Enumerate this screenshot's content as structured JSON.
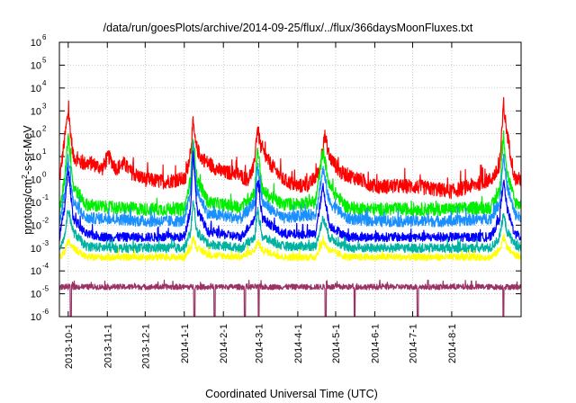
{
  "chart_data": {
    "type": "line",
    "title": "/data/run/goesPlots/archive/2014-09-25/flux/../flux/366daysMoonFluxes.txt",
    "xlabel": "Coordinated Universal Time (UTC)",
    "ylabel": {
      "base": "protons/cm",
      "sup": "2",
      "rest": "-s-sr-MeV"
    },
    "y_scale": "log",
    "ylim": [
      1e-06,
      1000000.0
    ],
    "y_ticks": [
      {
        "value": 1e-06,
        "mantissa": "10",
        "exp": "-6"
      },
      {
        "value": 1e-05,
        "mantissa": "10",
        "exp": "-5"
      },
      {
        "value": 0.0001,
        "mantissa": "10",
        "exp": "-4"
      },
      {
        "value": 0.001,
        "mantissa": "10",
        "exp": "-3"
      },
      {
        "value": 0.01,
        "mantissa": "10",
        "exp": "-2"
      },
      {
        "value": 0.1,
        "mantissa": "10",
        "exp": "-1"
      },
      {
        "value": 1.0,
        "mantissa": "10",
        "exp": "0"
      },
      {
        "value": 10.0,
        "mantissa": "10",
        "exp": "1"
      },
      {
        "value": 100.0,
        "mantissa": "10",
        "exp": "2"
      },
      {
        "value": 1000.0,
        "mantissa": "10",
        "exp": "3"
      },
      {
        "value": 10000.0,
        "mantissa": "10",
        "exp": "4"
      },
      {
        "value": 100000.0,
        "mantissa": "10",
        "exp": "5"
      },
      {
        "value": 1000000.0,
        "mantissa": "10",
        "exp": "6"
      }
    ],
    "xlim": [
      "2013-09-24",
      "2014-09-25"
    ],
    "x_ticks": [
      "2013-10-1",
      "2013-11-1",
      "2013-12-1",
      "2014-1-1",
      "2014-2-1",
      "2014-3-1",
      "2014-4-1",
      "2014-5-1",
      "2014-6-1",
      "2014-7-1",
      "2014-8-1"
    ],
    "grid": true,
    "legend": "none",
    "series": [
      {
        "color": "#ff0000",
        "noise": 0.32,
        "x": [
          "2013-09-24",
          "2013-09-28",
          "2013-10-01",
          "2013-10-05",
          "2013-10-12",
          "2013-10-20",
          "2013-10-28",
          "2013-11-02",
          "2013-11-08",
          "2013-11-14",
          "2013-11-20",
          "2013-12-01",
          "2013-12-15",
          "2013-12-28",
          "2014-01-02",
          "2014-01-06",
          "2014-01-08",
          "2014-01-10",
          "2014-01-14",
          "2014-01-20",
          "2014-02-01",
          "2014-02-10",
          "2014-02-20",
          "2014-02-25",
          "2014-02-28",
          "2014-03-03",
          "2014-03-10",
          "2014-03-20",
          "2014-04-01",
          "2014-04-10",
          "2014-04-18",
          "2014-04-22",
          "2014-04-26",
          "2014-05-05",
          "2014-05-20",
          "2014-06-01",
          "2014-06-15",
          "2014-07-01",
          "2014-07-15",
          "2014-08-01",
          "2014-08-15",
          "2014-09-01",
          "2014-09-08",
          "2014-09-11",
          "2014-09-14",
          "2014-09-20",
          "2014-09-25"
        ],
        "y": [
          0.8,
          50,
          1000,
          10,
          5,
          5,
          3,
          10,
          3,
          5,
          2,
          1,
          0.8,
          1,
          1,
          20,
          300,
          30,
          10,
          5,
          2,
          2,
          1,
          3,
          200,
          20,
          5,
          1,
          0.5,
          0.6,
          2,
          100,
          10,
          2,
          1,
          0.5,
          0.5,
          0.5,
          0.4,
          0.3,
          0.5,
          1,
          3,
          1500,
          100,
          1,
          1
        ]
      },
      {
        "color": "#00ee00",
        "noise": 0.28,
        "x": [
          "2013-09-24",
          "2013-09-28",
          "2013-10-01",
          "2013-10-05",
          "2013-10-15",
          "2013-11-01",
          "2013-12-01",
          "2014-01-01",
          "2014-01-06",
          "2014-01-08",
          "2014-01-11",
          "2014-01-20",
          "2014-02-15",
          "2014-02-26",
          "2014-02-28",
          "2014-03-04",
          "2014-03-20",
          "2014-04-15",
          "2014-04-21",
          "2014-04-26",
          "2014-05-10",
          "2014-06-01",
          "2014-07-01",
          "2014-08-01",
          "2014-09-01",
          "2014-09-08",
          "2014-09-11",
          "2014-09-14",
          "2014-09-20",
          "2014-09-25"
        ],
        "y": [
          0.03,
          1,
          100,
          0.5,
          0.08,
          0.06,
          0.05,
          0.05,
          1,
          100,
          1,
          0.1,
          0.06,
          0.3,
          30,
          0.3,
          0.08,
          0.1,
          20,
          0.5,
          0.06,
          0.05,
          0.05,
          0.05,
          0.06,
          0.3,
          100,
          2,
          0.1,
          0.08
        ]
      },
      {
        "color": "#1a90ff",
        "noise": 0.25,
        "x": [
          "2013-09-24",
          "2013-09-28",
          "2013-10-01",
          "2013-10-05",
          "2013-10-15",
          "2013-11-01",
          "2013-12-01",
          "2014-01-01",
          "2014-01-06",
          "2014-01-08",
          "2014-01-11",
          "2014-01-20",
          "2014-02-15",
          "2014-02-26",
          "2014-02-28",
          "2014-03-04",
          "2014-03-20",
          "2014-04-15",
          "2014-04-21",
          "2014-04-26",
          "2014-05-10",
          "2014-06-01",
          "2014-07-01",
          "2014-08-01",
          "2014-09-01",
          "2014-09-08",
          "2014-09-11",
          "2014-09-14",
          "2014-09-20",
          "2014-09-25"
        ],
        "y": [
          0.015,
          0.2,
          10,
          0.1,
          0.02,
          0.02,
          0.015,
          0.015,
          0.3,
          30,
          0.3,
          0.03,
          0.02,
          0.1,
          5,
          0.1,
          0.02,
          0.03,
          3,
          0.1,
          0.02,
          0.015,
          0.015,
          0.015,
          0.02,
          0.1,
          10,
          0.5,
          0.03,
          0.02
        ]
      },
      {
        "color": "#0000ff",
        "noise": 0.2,
        "x": [
          "2013-09-24",
          "2013-09-28",
          "2013-10-01",
          "2013-10-05",
          "2013-10-15",
          "2013-11-01",
          "2013-12-01",
          "2014-01-01",
          "2014-01-06",
          "2014-01-08",
          "2014-01-11",
          "2014-01-20",
          "2014-02-15",
          "2014-02-26",
          "2014-02-28",
          "2014-03-04",
          "2014-03-20",
          "2014-04-15",
          "2014-04-21",
          "2014-04-26",
          "2014-05-10",
          "2014-06-01",
          "2014-07-01",
          "2014-08-01",
          "2014-09-01",
          "2014-09-08",
          "2014-09-11",
          "2014-09-14",
          "2014-09-20",
          "2014-09-25"
        ],
        "y": [
          0.003,
          0.05,
          3,
          0.02,
          0.004,
          0.003,
          0.003,
          0.003,
          0.05,
          20,
          0.05,
          0.005,
          0.003,
          0.02,
          1,
          0.02,
          0.004,
          0.004,
          0.5,
          0.01,
          0.003,
          0.003,
          0.003,
          0.003,
          0.003,
          0.02,
          1,
          0.05,
          0.004,
          0.003
        ]
      },
      {
        "color": "#00b2a0",
        "noise": 0.2,
        "x": [
          "2013-09-24",
          "2013-09-28",
          "2013-10-01",
          "2013-10-05",
          "2013-10-15",
          "2013-11-01",
          "2013-12-01",
          "2014-01-01",
          "2014-01-06",
          "2014-01-08",
          "2014-01-11",
          "2014-01-20",
          "2014-02-15",
          "2014-02-26",
          "2014-02-28",
          "2014-03-04",
          "2014-03-20",
          "2014-04-15",
          "2014-04-21",
          "2014-04-26",
          "2014-05-10",
          "2014-06-01",
          "2014-07-01",
          "2014-08-01",
          "2014-09-01",
          "2014-09-08",
          "2014-09-11",
          "2014-09-14",
          "2014-09-20",
          "2014-09-25"
        ],
        "y": [
          0.001,
          0.003,
          0.05,
          0.005,
          0.0012,
          0.001,
          0.001,
          0.001,
          0.005,
          0.1,
          0.005,
          0.0015,
          0.001,
          0.003,
          0.05,
          0.003,
          0.0012,
          0.0012,
          0.02,
          0.003,
          0.001,
          0.001,
          0.001,
          0.001,
          0.001,
          0.003,
          0.03,
          0.005,
          0.0015,
          0.001
        ]
      },
      {
        "color": "#ffff00",
        "noise": 0.15,
        "x": [
          "2013-09-24",
          "2013-09-28",
          "2013-10-01",
          "2013-10-05",
          "2013-10-15",
          "2013-11-01",
          "2013-12-01",
          "2014-01-01",
          "2014-01-06",
          "2014-01-08",
          "2014-01-11",
          "2014-01-20",
          "2014-02-15",
          "2014-02-26",
          "2014-02-28",
          "2014-03-04",
          "2014-03-20",
          "2014-04-15",
          "2014-04-21",
          "2014-04-26",
          "2014-05-10",
          "2014-06-01",
          "2014-07-01",
          "2014-08-01",
          "2014-09-01",
          "2014-09-08",
          "2014-09-11",
          "2014-09-14",
          "2014-09-20",
          "2014-09-25"
        ],
        "y": [
          0.0004,
          0.0006,
          0.002,
          0.001,
          0.0004,
          0.0004,
          0.0004,
          0.0004,
          0.001,
          0.003,
          0.001,
          0.0005,
          0.0004,
          0.0008,
          0.002,
          0.0008,
          0.0004,
          0.0004,
          0.002,
          0.0008,
          0.0004,
          0.0004,
          0.0004,
          0.0004,
          0.0004,
          0.0008,
          0.003,
          0.001,
          0.0005,
          0.0004
        ]
      },
      {
        "color": "#993366",
        "noise": 0.12,
        "x": [
          "2013-09-24",
          "2014-01-01",
          "2014-01-08",
          "2014-01-15",
          "2014-02-28",
          "2014-05-01",
          "2014-09-11",
          "2014-09-25"
        ],
        "y": [
          2e-05,
          2e-05,
          2e-05,
          2e-05,
          2e-05,
          2e-05,
          2e-05,
          2e-05
        ],
        "dips": [
          "2013-10-03",
          "2014-01-09",
          "2014-01-25",
          "2014-02-18",
          "2014-03-01",
          "2014-04-23",
          "2014-05-16",
          "2014-07-05",
          "2014-09-11"
        ]
      }
    ]
  }
}
